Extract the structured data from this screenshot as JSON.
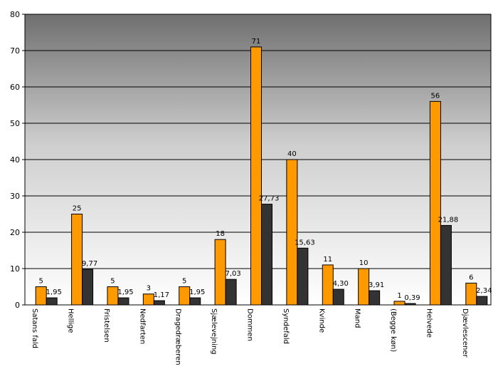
{
  "chart_data": {
    "type": "bar",
    "categories": [
      "Satans fald",
      "Hellige",
      "Fristelsen",
      "Nedfarten",
      "Dragedræberen",
      "Sjælevejning",
      "Dommen",
      "Syndefald",
      "Kvinde",
      "Mand",
      "(Begge køn)",
      "Helvede",
      "Djævlescener"
    ],
    "series": [
      {
        "color": "#ff9900",
        "values": [
          5,
          25,
          5,
          3,
          5,
          18,
          71,
          40,
          11,
          10,
          1,
          56,
          6
        ],
        "labels": [
          "5",
          "25",
          "5",
          "3",
          "5",
          "18",
          "71",
          "40",
          "11",
          "10",
          "1",
          "56",
          "6"
        ]
      },
      {
        "color": "#333333",
        "values": [
          1.95,
          9.77,
          1.95,
          1.17,
          1.95,
          7.03,
          27.73,
          15.63,
          4.3,
          3.91,
          0.39,
          21.88,
          2.34
        ],
        "labels": [
          "1,95",
          "9,77",
          "1,95",
          "1,17",
          "1,95",
          "7,03",
          "27,73",
          "15,63",
          "4,30",
          "3,91",
          "0,39",
          "21,88",
          "2,34"
        ]
      }
    ],
    "yticks": [
      "0",
      "10",
      "20",
      "30",
      "40",
      "50",
      "60",
      "70",
      "80"
    ],
    "ylim": [
      0,
      80
    ],
    "grid": true,
    "legend": "none"
  }
}
